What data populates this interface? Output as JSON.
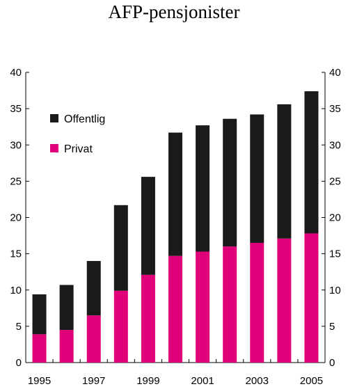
{
  "chart_data": {
    "type": "bar",
    "stacked": true,
    "title": "AFP-pensjonister",
    "xlabel": "",
    "ylabel": "",
    "ylim": [
      0,
      40
    ],
    "yticks": [
      0,
      5,
      10,
      15,
      20,
      25,
      30,
      35,
      40
    ],
    "categories": [
      "1995",
      "1996",
      "1997",
      "1998",
      "1999",
      "2000",
      "2001",
      "2002",
      "2003",
      "2004",
      "2005"
    ],
    "xtick_labels": [
      "1995",
      "1997",
      "1999",
      "2001",
      "2003",
      "2005"
    ],
    "series": [
      {
        "name": "Privat",
        "color": "#e0007a",
        "values": [
          3.9,
          4.5,
          6.5,
          9.9,
          12.1,
          14.7,
          15.3,
          16.0,
          16.5,
          17.1,
          17.8
        ]
      },
      {
        "name": "Offentlig",
        "color": "#1a1a1a",
        "values": [
          5.5,
          6.2,
          7.5,
          11.8,
          13.5,
          17.0,
          17.4,
          17.6,
          17.7,
          18.5,
          19.6
        ]
      }
    ],
    "legend": {
      "placement": "top-left",
      "order": [
        "Offentlig",
        "Privat"
      ]
    },
    "grid": false,
    "right_axis": true
  }
}
